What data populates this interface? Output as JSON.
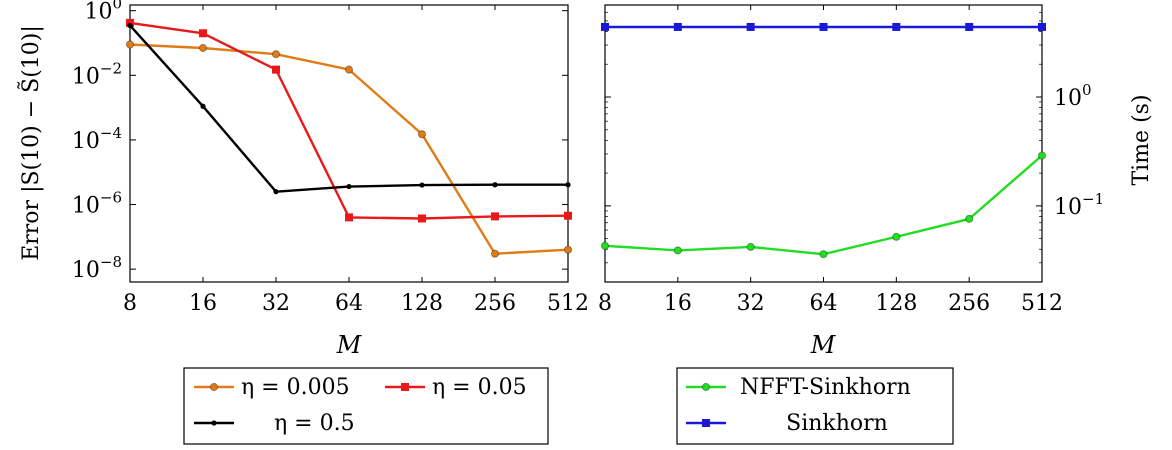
{
  "chart_data": [
    {
      "type": "line",
      "x": [
        8,
        16,
        32,
        64,
        128,
        256,
        512
      ],
      "xlabel": "M",
      "ylabel": "Error |S(10) − S̃(10)|",
      "yscale": "log",
      "ylim": [
        1e-08,
        1
      ],
      "y_ticks": [
        {
          "value": 1.0,
          "base": "10",
          "exp": "0"
        },
        {
          "value": 0.01,
          "base": "10",
          "exp": "−2"
        },
        {
          "value": 0.0001,
          "base": "10",
          "exp": "−4"
        },
        {
          "value": 1e-06,
          "base": "10",
          "exp": "−6"
        },
        {
          "value": 1e-08,
          "base": "10",
          "exp": "−8"
        }
      ],
      "legend_position": "below",
      "series": [
        {
          "name": "η = 0.005",
          "color": "#e07c17",
          "marker": "circle",
          "values": [
            0.09,
            0.07,
            0.045,
            0.015,
            0.00015,
            3e-08,
            4e-08
          ]
        },
        {
          "name": "η = 0.05",
          "color": "#e8191b",
          "marker": "square",
          "values": [
            0.42,
            0.2,
            0.015,
            4e-07,
            3.7e-07,
            4.3e-07,
            4.5e-07
          ]
        },
        {
          "name": "η = 0.5",
          "color": "#000000",
          "marker": "dot",
          "values": [
            0.35,
            0.0011,
            2.5e-06,
            3.6e-06,
            4e-06,
            4.1e-06,
            4.1e-06
          ]
        }
      ]
    },
    {
      "type": "line",
      "x": [
        8,
        16,
        32,
        64,
        128,
        256,
        512
      ],
      "xlabel": "M",
      "ylabel": "Time (s)",
      "yscale": "log",
      "ylim": [
        0.02,
        7
      ],
      "y_ticks": [
        {
          "value": 1,
          "base": "10",
          "exp": "0"
        },
        {
          "value": 0.1,
          "base": "10",
          "exp": "−1"
        }
      ],
      "legend_position": "below",
      "series": [
        {
          "name": "NFFT-Sinkhorn",
          "color": "#22dd22",
          "marker": "circle",
          "values": [
            0.043,
            0.039,
            0.042,
            0.036,
            0.052,
            0.076,
            0.29
          ]
        },
        {
          "name": "Sinkhorn",
          "color": "#1a1ad6",
          "marker": "square",
          "values": [
            4.4,
            4.4,
            4.4,
            4.4,
            4.4,
            4.4,
            4.4
          ]
        }
      ]
    }
  ]
}
